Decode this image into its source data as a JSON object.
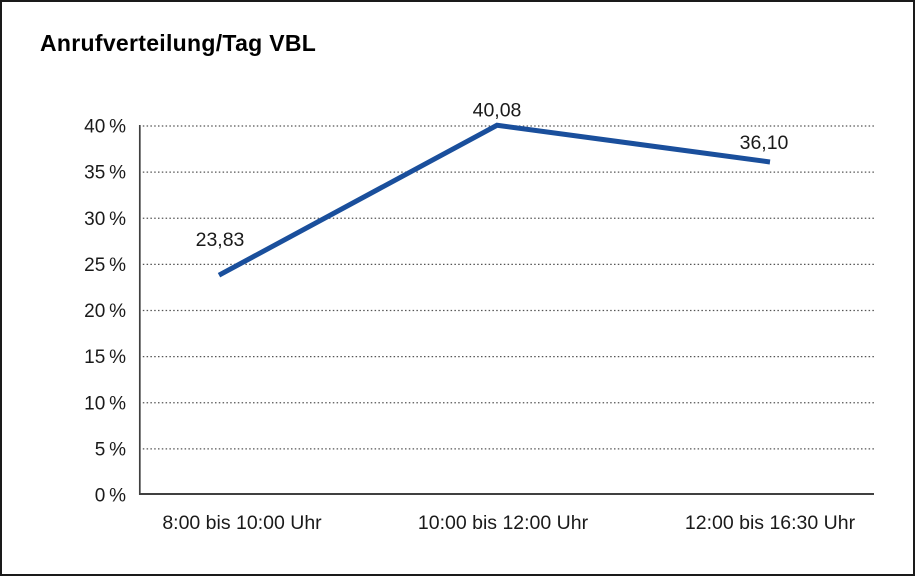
{
  "window": {
    "background": "#ffffff",
    "border_color": "#1a1a1a"
  },
  "chart_data": {
    "type": "line",
    "title": "Anrufverteilung/Tag VBL",
    "categories": [
      "8:00 bis 10:00 Uhr",
      "10:00 bis 12:00 Uhr",
      "12:00 bis 16:30 Uhr"
    ],
    "series": [
      {
        "values": [
          23.83,
          40.08,
          36.1
        ],
        "point_labels": [
          "23,83",
          "40,08",
          "36,10"
        ],
        "color": "#1a4f9c"
      }
    ],
    "xlabel": "",
    "ylabel": "",
    "ylim": [
      0,
      40
    ],
    "ytick_step": 5,
    "yticks": [
      {
        "value": 0,
        "label": "0 %"
      },
      {
        "value": 5,
        "label": "5 %"
      },
      {
        "value": 10,
        "label": "10 %"
      },
      {
        "value": 15,
        "label": "15 %"
      },
      {
        "value": 20,
        "label": "20 %"
      },
      {
        "value": 25,
        "label": "25 %"
      },
      {
        "value": 30,
        "label": "30 %"
      },
      {
        "value": 35,
        "label": "35 %"
      },
      {
        "value": 40,
        "label": "40 %"
      }
    ],
    "grid": "horizontal-dotted",
    "legend": "none",
    "axis_color": "#404040",
    "gridline_color": "#555555",
    "text_color": "#1a1a1a"
  }
}
